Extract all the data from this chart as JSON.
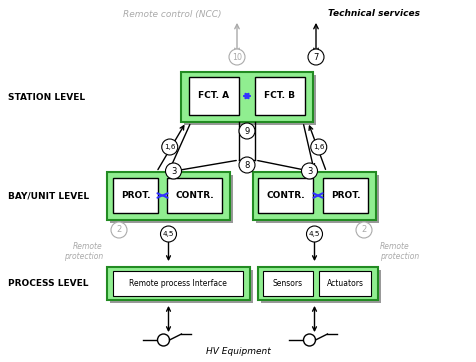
{
  "bg_color": "#ffffff",
  "station_level_label": "STATION LEVEL",
  "bay_level_label": "BAY/UNIT LEVEL",
  "process_level_label": "PROCESS LEVEL",
  "remote_control_label": "Remote control (NCC)",
  "technical_services_label": "Technical services",
  "hv_equipment_label": "HV Equipment",
  "remote_protection_label": "Remote\nprotection",
  "box_fill_outer": "#90EE90",
  "box_fill_inner": "#ffffff",
  "box_edge_outer": "#228B22",
  "box_edge_inner": "#000000",
  "shadow_color": "#999999",
  "circle_fill": "#ffffff",
  "blue_arrow_color": "#3333ff",
  "gray_color": "#aaaaaa",
  "black": "#000000",
  "fig_w": 4.77,
  "fig_h": 3.62,
  "dpi": 100
}
